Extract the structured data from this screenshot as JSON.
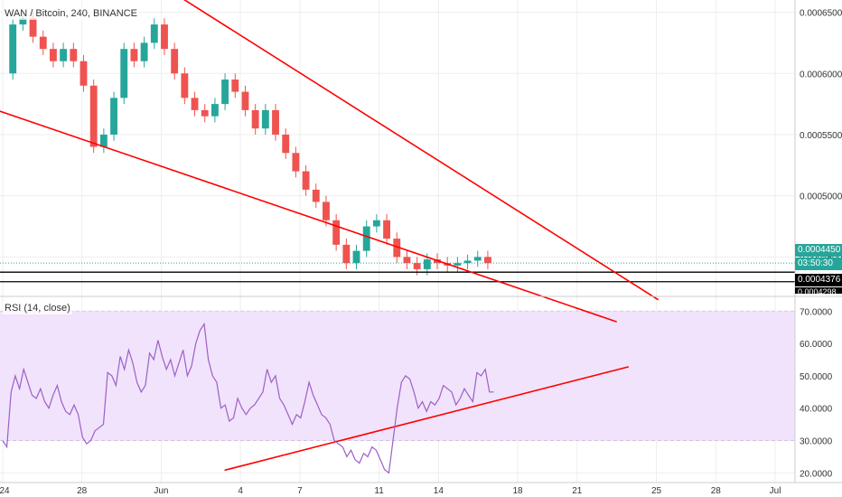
{
  "header": {
    "symbol_title": "WAN / Bitcoin, 240, BINANCE"
  },
  "rsi_pane": {
    "title": "RSI (14, close)"
  },
  "price_badges": {
    "last_price": "0.0004450",
    "countdown": "03:50:30",
    "line_price": "0.0004376",
    "line_price_2": "0.0004298"
  },
  "colors": {
    "up": "#26a69a",
    "down": "#ef5350",
    "trendline": "#ff0000",
    "rsi_line": "#9c5fc7",
    "rsi_band": "#f1e3fb",
    "grid": "#eeeeee"
  },
  "chart_data": [
    {
      "type": "candlestick",
      "title": "WAN / Bitcoin, 240, BINANCE",
      "ylim": [
        0.00042,
        0.00066
      ],
      "ytick_labels": [
        "0.0006500",
        "0.0006000",
        "0.0005500",
        "0.0005000",
        "0.0004500"
      ],
      "ytick_values": [
        0.00065,
        0.0006,
        0.00055,
        0.0005,
        0.00045
      ],
      "xtick_labels": [
        "24",
        "28",
        "Jun",
        "4",
        "7",
        "11",
        "14",
        "18",
        "21",
        "25",
        "28",
        "Jul"
      ],
      "xlim": [
        0,
        40
      ],
      "xtick_values": [
        0,
        4,
        8,
        12,
        15,
        19,
        22,
        26,
        29,
        33,
        36,
        39
      ],
      "closes": [
        0.0006,
        0.00064,
        0.000645,
        0.00063,
        0.00062,
        0.00061,
        0.00062,
        0.00061,
        0.00059,
        0.00054,
        0.00055,
        0.00058,
        0.00062,
        0.00061,
        0.000625,
        0.00064,
        0.00062,
        0.0006,
        0.00058,
        0.00057,
        0.000565,
        0.000575,
        0.000595,
        0.000585,
        0.00057,
        0.000555,
        0.00057,
        0.00055,
        0.000535,
        0.00052,
        0.000505,
        0.000495,
        0.00048,
        0.00046,
        0.000445,
        0.000455,
        0.000475,
        0.00048,
        0.000465,
        0.00045,
        0.000445,
        0.00044,
        0.000448,
        0.000445,
        0.000443,
        0.000445,
        0.000447,
        0.00045,
        0.000445
      ],
      "trendlines": [
        {
          "from": [
            -0.3,
            0.00057
          ],
          "to": [
            31,
            0.000397
          ]
        },
        {
          "from": [
            8.7,
            0.000665
          ],
          "to": [
            33.1,
            0.000415
          ]
        }
      ],
      "horizontal_lines": [
        0.0004376,
        0.0004298
      ],
      "last_price": 0.000445
    },
    {
      "type": "line",
      "title": "RSI (14, close)",
      "ylim": [
        17,
        74
      ],
      "ytick_labels": [
        "70.0000",
        "60.0000",
        "50.0000",
        "40.0000",
        "30.0000",
        "20.0000"
      ],
      "ytick_values": [
        70,
        60,
        50,
        40,
        30,
        20
      ],
      "band": [
        30,
        70
      ],
      "series": [
        {
          "values": [
            30,
            28,
            45,
            50,
            46,
            52,
            48,
            44,
            43,
            46,
            42,
            40,
            44,
            47,
            42,
            39,
            38,
            41,
            38,
            31,
            29,
            30,
            33,
            34,
            35,
            51,
            50,
            47,
            56,
            52,
            58,
            54,
            48,
            45,
            47,
            57,
            55,
            61,
            56,
            52,
            55,
            50,
            54,
            58,
            50,
            53,
            60,
            64,
            66,
            55,
            50,
            48,
            40,
            41,
            36,
            37,
            43,
            40,
            38,
            40,
            41,
            43,
            45,
            52,
            48,
            50,
            43,
            41,
            38,
            35,
            38,
            37,
            42,
            48,
            44,
            41,
            38,
            37,
            35,
            30,
            29,
            28,
            25,
            27,
            24,
            23,
            26,
            25,
            28,
            27,
            24,
            21,
            20,
            30,
            40,
            48,
            50,
            49,
            45,
            40,
            42,
            39,
            42,
            41,
            43,
            47,
            46,
            45,
            41,
            43,
            46,
            44,
            42,
            51,
            50,
            52,
            45,
            45
          ]
        }
      ],
      "trendlines": [
        {
          "from": [
            11.2,
            20.8
          ],
          "to": [
            31.6,
            52.8
          ]
        }
      ]
    }
  ]
}
